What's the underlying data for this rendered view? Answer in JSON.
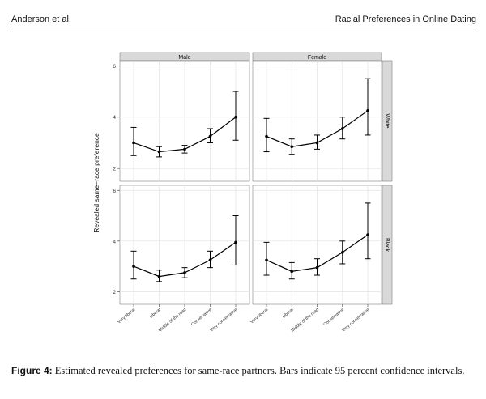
{
  "header": {
    "left": "Anderson et al.",
    "right": "Racial Preferences in Online Dating"
  },
  "caption": {
    "label": "Figure 4:",
    "text": " Estimated revealed preferences for same-race partners. Bars indicate 95 percent confidence intervals."
  },
  "chart_data": {
    "type": "line",
    "ylabel": "Revealed same−race preference",
    "ylim": [
      1.5,
      6.2
    ],
    "yticks": [
      2,
      4,
      6
    ],
    "categories": [
      "Very liberal",
      "Liberal",
      "Middle of the road",
      "Conservative",
      "Very conservative"
    ],
    "columns": [
      "Male",
      "Female"
    ],
    "rows": [
      "White",
      "Black"
    ],
    "grid": true,
    "panels": [
      {
        "col": "Male",
        "row": "White",
        "values": [
          3.0,
          2.65,
          2.75,
          3.25,
          4.0
        ],
        "lower": [
          2.5,
          2.45,
          2.6,
          3.0,
          3.1
        ],
        "upper": [
          3.6,
          2.85,
          2.9,
          3.55,
          5.0
        ]
      },
      {
        "col": "Female",
        "row": "White",
        "values": [
          3.25,
          2.85,
          3.0,
          3.55,
          4.25
        ],
        "lower": [
          2.65,
          2.55,
          2.75,
          3.15,
          3.3
        ],
        "upper": [
          3.95,
          3.15,
          3.3,
          4.0,
          5.5
        ]
      },
      {
        "col": "Male",
        "row": "Black",
        "values": [
          3.0,
          2.6,
          2.75,
          3.25,
          3.95
        ],
        "lower": [
          2.5,
          2.4,
          2.55,
          2.95,
          3.05
        ],
        "upper": [
          3.6,
          2.85,
          2.95,
          3.6,
          5.0
        ]
      },
      {
        "col": "Female",
        "row": "Black",
        "values": [
          3.25,
          2.8,
          2.95,
          3.55,
          4.25
        ],
        "lower": [
          2.65,
          2.5,
          2.65,
          3.1,
          3.3
        ],
        "upper": [
          3.95,
          3.15,
          3.3,
          4.0,
          5.5
        ]
      }
    ]
  }
}
